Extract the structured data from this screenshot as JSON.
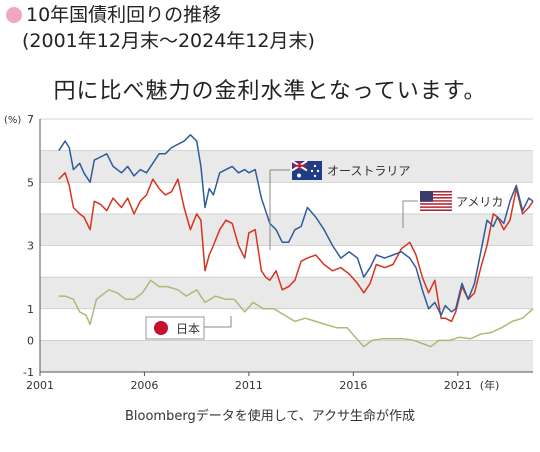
{
  "header": {
    "title": "10年国債利回りの推移",
    "subtitle": "(2001年12月末〜2024年12月末)",
    "headline": "円に比べ魅力の金利水準となっています。",
    "bullet_color": "#f0a6c4"
  },
  "footer": {
    "source": "Bloombergデータを使用して、アクサ生命が作成"
  },
  "chart_data": {
    "type": "line",
    "yunit": "(%)",
    "xunit": "(年)",
    "ylim": [
      -1,
      7
    ],
    "xlim": [
      2001,
      2024.6
    ],
    "yticks": [
      -1,
      0,
      1,
      3,
      5,
      7
    ],
    "xticks": [
      {
        "value": 2001,
        "label": "2001"
      },
      {
        "value": 2006,
        "label": "2006"
      },
      {
        "value": 2011,
        "label": "2011"
      },
      {
        "value": 2016,
        "label": "2016"
      },
      {
        "value": 2021,
        "label": "2021"
      }
    ],
    "band_colors": [
      "#e9e9e9",
      "#ffffff"
    ],
    "series": [
      {
        "name": "オーストラリア",
        "color": "#2e5c9a",
        "x": [
          2001.9,
          2002.2,
          2002.4,
          2002.6,
          2002.9,
          2003.1,
          2003.4,
          2003.6,
          2003.9,
          2004.2,
          2004.5,
          2004.9,
          2005.2,
          2005.5,
          2005.8,
          2006.1,
          2006.4,
          2006.7,
          2007.0,
          2007.3,
          2007.6,
          2007.9,
          2008.2,
          2008.5,
          2008.7,
          2008.9,
          2009.1,
          2009.3,
          2009.6,
          2009.9,
          2010.2,
          2010.5,
          2010.8,
          2011.0,
          2011.3,
          2011.6,
          2011.8,
          2012.0,
          2012.3,
          2012.6,
          2012.9,
          2013.2,
          2013.5,
          2013.8,
          2014.2,
          2014.6,
          2015.0,
          2015.4,
          2015.8,
          2016.2,
          2016.5,
          2016.8,
          2017.1,
          2017.5,
          2017.9,
          2018.3,
          2018.7,
          2019.0,
          2019.3,
          2019.6,
          2019.9,
          2020.2,
          2020.4,
          2020.7,
          2020.9,
          2021.2,
          2021.5,
          2021.8,
          2022.1,
          2022.4,
          2022.7,
          2022.9,
          2023.2,
          2023.5,
          2023.8,
          2024.1,
          2024.4,
          2024.6
        ],
        "y": [
          6.0,
          6.3,
          6.1,
          5.4,
          5.6,
          5.3,
          5.0,
          5.7,
          5.8,
          5.9,
          5.5,
          5.3,
          5.5,
          5.2,
          5.4,
          5.3,
          5.6,
          5.9,
          5.9,
          6.1,
          6.2,
          6.3,
          6.5,
          6.3,
          5.5,
          4.2,
          4.8,
          4.6,
          5.3,
          5.4,
          5.5,
          5.3,
          5.4,
          5.3,
          5.4,
          4.5,
          4.1,
          3.7,
          3.5,
          3.1,
          3.1,
          3.5,
          3.6,
          4.2,
          3.9,
          3.5,
          3.0,
          2.6,
          2.8,
          2.6,
          2.0,
          2.3,
          2.7,
          2.6,
          2.7,
          2.8,
          2.6,
          2.3,
          1.6,
          1.0,
          1.2,
          0.8,
          1.1,
          0.9,
          1.0,
          1.8,
          1.3,
          1.8,
          2.8,
          3.8,
          3.6,
          3.9,
          3.7,
          4.4,
          4.9,
          4.1,
          4.5,
          4.4
        ]
      },
      {
        "name": "アメリカ",
        "color": "#d8331e",
        "x": [
          2001.9,
          2002.2,
          2002.4,
          2002.6,
          2002.9,
          2003.1,
          2003.4,
          2003.6,
          2003.9,
          2004.2,
          2004.5,
          2004.9,
          2005.2,
          2005.5,
          2005.8,
          2006.1,
          2006.4,
          2006.7,
          2007.0,
          2007.3,
          2007.6,
          2007.9,
          2008.2,
          2008.5,
          2008.7,
          2008.9,
          2009.1,
          2009.3,
          2009.6,
          2009.9,
          2010.2,
          2010.5,
          2010.8,
          2011.0,
          2011.3,
          2011.6,
          2011.8,
          2012.0,
          2012.3,
          2012.6,
          2012.9,
          2013.2,
          2013.5,
          2013.8,
          2014.2,
          2014.6,
          2015.0,
          2015.4,
          2015.8,
          2016.2,
          2016.5,
          2016.8,
          2017.1,
          2017.5,
          2017.9,
          2018.3,
          2018.7,
          2019.0,
          2019.3,
          2019.6,
          2019.9,
          2020.2,
          2020.4,
          2020.7,
          2020.9,
          2021.2,
          2021.5,
          2021.8,
          2022.1,
          2022.4,
          2022.7,
          2022.9,
          2023.2,
          2023.5,
          2023.8,
          2024.1,
          2024.4,
          2024.6
        ],
        "y": [
          5.1,
          5.3,
          4.9,
          4.2,
          4.0,
          3.9,
          3.5,
          4.4,
          4.3,
          4.1,
          4.5,
          4.2,
          4.5,
          4.0,
          4.4,
          4.6,
          5.1,
          4.8,
          4.6,
          4.7,
          5.1,
          4.2,
          3.5,
          4.0,
          3.8,
          2.2,
          2.7,
          3.0,
          3.5,
          3.8,
          3.7,
          3.0,
          2.6,
          3.4,
          3.5,
          2.2,
          2.0,
          1.9,
          2.2,
          1.6,
          1.7,
          1.9,
          2.5,
          2.6,
          2.7,
          2.4,
          2.2,
          2.3,
          2.1,
          1.8,
          1.5,
          1.8,
          2.4,
          2.3,
          2.4,
          2.9,
          3.1,
          2.7,
          2.0,
          1.5,
          1.9,
          0.7,
          0.7,
          0.6,
          0.9,
          1.7,
          1.3,
          1.5,
          2.3,
          3.0,
          4.0,
          3.9,
          3.5,
          3.8,
          4.8,
          4.0,
          4.2,
          4.4
        ]
      },
      {
        "name": "日本",
        "color": "#a8bc78",
        "x": [
          2001.9,
          2002.2,
          2002.6,
          2002.9,
          2003.2,
          2003.4,
          2003.7,
          2003.9,
          2004.3,
          2004.7,
          2005.1,
          2005.5,
          2005.9,
          2006.3,
          2006.7,
          2007.1,
          2007.6,
          2008.0,
          2008.5,
          2008.9,
          2009.4,
          2009.9,
          2010.3,
          2010.8,
          2011.2,
          2011.7,
          2012.2,
          2012.7,
          2013.2,
          2013.7,
          2014.2,
          2014.7,
          2015.2,
          2015.7,
          2016.1,
          2016.5,
          2016.9,
          2017.4,
          2017.9,
          2018.4,
          2018.9,
          2019.3,
          2019.7,
          2020.1,
          2020.6,
          2021.1,
          2021.6,
          2022.1,
          2022.6,
          2023.1,
          2023.6,
          2024.1,
          2024.6
        ],
        "y": [
          1.4,
          1.4,
          1.3,
          0.9,
          0.8,
          0.5,
          1.3,
          1.4,
          1.6,
          1.5,
          1.3,
          1.3,
          1.5,
          1.9,
          1.7,
          1.7,
          1.6,
          1.4,
          1.6,
          1.2,
          1.4,
          1.3,
          1.3,
          0.9,
          1.2,
          1.0,
          1.0,
          0.8,
          0.6,
          0.7,
          0.6,
          0.5,
          0.4,
          0.4,
          0.1,
          -0.2,
          0.0,
          0.05,
          0.05,
          0.05,
          0.0,
          -0.1,
          -0.2,
          0.0,
          0.0,
          0.1,
          0.05,
          0.2,
          0.25,
          0.4,
          0.6,
          0.7,
          1.0
        ]
      }
    ],
    "legend": [
      {
        "series": "オーストラリア",
        "label": "オーストラリア",
        "flag": "australia-flag"
      },
      {
        "series": "アメリカ",
        "label": "アメリカ",
        "flag": "usa-flag"
      },
      {
        "series": "日本",
        "label": "日本",
        "flag": "japan-flag"
      }
    ]
  }
}
